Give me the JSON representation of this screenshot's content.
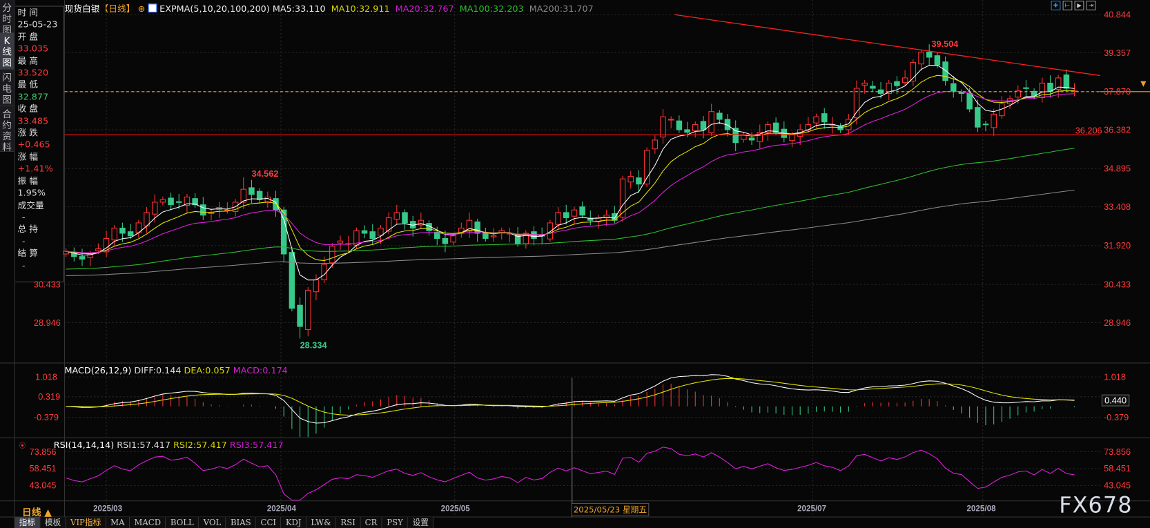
{
  "left_tabs": [
    "分时图",
    "K线图",
    "闪电图",
    "合约资料"
  ],
  "info": {
    "time_label": "时 间",
    "time": "25-05-23",
    "open_label": "开 盘",
    "open": "33.035",
    "high_label": "最 高",
    "high": "33.520",
    "low_label": "最 低",
    "low": "32.877",
    "close_label": "收 盘",
    "close": "33.485",
    "change_label": "涨 跌",
    "change": "+0.465",
    "pct_label": "涨 幅",
    "pct": "+1.41%",
    "amp_label": "振 幅",
    "amp": "1.95%",
    "vol_label": "成交量",
    "vol": "-",
    "oi_label": "总 持",
    "oi": "-",
    "settle_label": "结 算",
    "settle": "-"
  },
  "header": {
    "symbol": "现货白银",
    "period": "【日线】",
    "indicator": "EXPMA(5,10,20,100,200)",
    "ma5": "MA5:33.110",
    "ma10": "MA10:32.911",
    "ma20": "MA20:32.767",
    "ma100": "MA100:32.203",
    "ma200": "MA200:31.707"
  },
  "top_icons": [
    "crosshair-icon",
    "zoom-fit-icon",
    "play-icon",
    "scroll-right-icon"
  ],
  "price_axis": [
    "40.844",
    "39.357",
    "37.870",
    "36.382",
    "34.895",
    "33.408",
    "31.920",
    "30.433",
    "28.946"
  ],
  "annotations": {
    "high_mar": "34.562",
    "low_apr": "28.334",
    "high_jul": "39.504",
    "support": "36.206"
  },
  "macd": {
    "title": "MACD(26,12,9)",
    "diff": "DIFF:0.144",
    "dea": "DEA:0.057",
    "macd": "MACD:0.174",
    "axis": [
      "1.018",
      "0.319",
      "-0.379"
    ],
    "current": "0.440"
  },
  "rsi": {
    "title": "RSI(14,14,14)",
    "rsi1": "RSI1:57.417",
    "rsi2": "RSI2:57.417",
    "rsi3": "RSI3:57.417",
    "axis": [
      "73.856",
      "58.451",
      "43.045"
    ]
  },
  "dates": [
    "2025/03",
    "2025/04",
    "2025/05",
    "2025/07",
    "2025/08"
  ],
  "crosshair_date": "2025/05/23 星期五",
  "period_selector": "日线 ▲",
  "toolbar": [
    "指标",
    "模板",
    "VIP指标",
    "MA",
    "MACD",
    "BOLL",
    "VOL",
    "BIAS",
    "CCI",
    "KDJ",
    "LW&",
    "RSI",
    "CR",
    "PSY",
    "设置"
  ],
  "watermark": "FX678",
  "colors": {
    "up": "#ff3232",
    "down": "#36c98a",
    "ema5": "#ffffff",
    "ema10": "#e6e600",
    "ema20": "#e020e0",
    "ema100": "#2fbf2f",
    "ema200": "#8a8a8a",
    "current_price_line": "#f0a030",
    "trend_line": "#ff2020"
  },
  "chart_data": {
    "type": "candlestick",
    "period": "daily",
    "closes": [
      31.7,
      31.5,
      31.4,
      31.6,
      31.8,
      32.2,
      32.6,
      32.4,
      32.3,
      32.8,
      33.2,
      33.6,
      33.7,
      33.5,
      33.6,
      33.8,
      33.5,
      33.1,
      33.2,
      33.4,
      33.3,
      33.6,
      34.1,
      33.9,
      33.7,
      33.8,
      33.3,
      31.6,
      29.5,
      28.8,
      30.2,
      30.6,
      31.2,
      31.9,
      32.1,
      32.0,
      32.5,
      32.4,
      32.2,
      32.6,
      33.0,
      33.2,
      32.8,
      32.6,
      32.9,
      32.5,
      32.2,
      32.0,
      32.3,
      32.6,
      32.9,
      32.4,
      32.2,
      32.3,
      32.5,
      32.4,
      32.0,
      32.4,
      32.2,
      32.3,
      32.8,
      33.2,
      33.0,
      33.3,
      33.1,
      32.9,
      33.0,
      33.1,
      32.9,
      34.5,
      34.6,
      34.3,
      35.6,
      36.0,
      36.9,
      36.8,
      36.4,
      36.3,
      36.6,
      36.4,
      37.1,
      36.8,
      36.4,
      35.9,
      36.2,
      36.0,
      36.3,
      36.6,
      36.3,
      36.1,
      36.2,
      36.4,
      36.6,
      36.9,
      36.7,
      36.6,
      36.4,
      36.8,
      38.0,
      38.2,
      38.0,
      37.8,
      38.2,
      38.1,
      38.4,
      39.0,
      39.4,
      39.2,
      38.9,
      38.3,
      37.9,
      37.8,
      37.2,
      36.5,
      36.6,
      37.0,
      37.4,
      37.6,
      37.9,
      38.0,
      37.7,
      38.2,
      37.9,
      38.4,
      38.0,
      37.9
    ],
    "price_range": [
      28.946,
      40.844
    ],
    "support_level": 36.206,
    "current_price": 37.87
  }
}
